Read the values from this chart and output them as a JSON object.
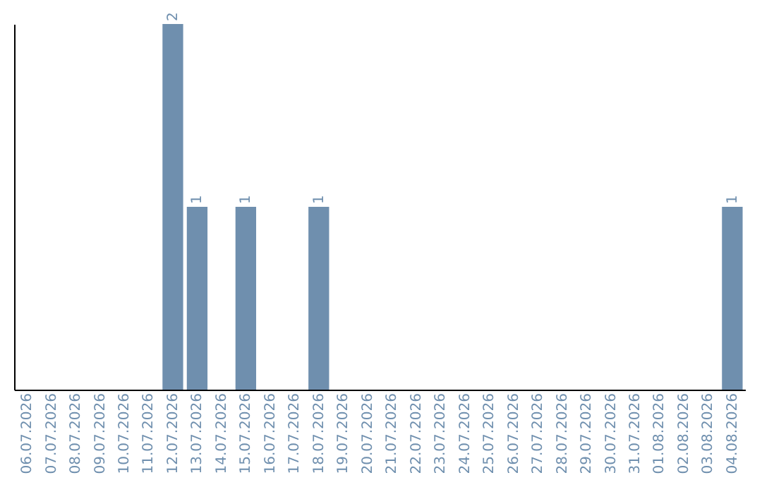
{
  "chart_data": {
    "type": "bar",
    "categories": [
      "06.07.2026",
      "07.07.2026",
      "08.07.2026",
      "09.07.2026",
      "10.07.2026",
      "11.07.2026",
      "12.07.2026",
      "13.07.2026",
      "14.07.2026",
      "15.07.2026",
      "16.07.2026",
      "17.07.2026",
      "18.07.2026",
      "19.07.2026",
      "20.07.2026",
      "21.07.2026",
      "22.07.2026",
      "23.07.2026",
      "24.07.2026",
      "25.07.2026",
      "26.07.2026",
      "27.07.2026",
      "28.07.2026",
      "29.07.2026",
      "30.07.2026",
      "31.07.2026",
      "01.08.2026",
      "02.08.2026",
      "03.08.2026",
      "04.08.2026"
    ],
    "values": [
      0,
      0,
      0,
      0,
      0,
      0,
      2,
      1,
      0,
      1,
      0,
      0,
      1,
      0,
      0,
      0,
      0,
      0,
      0,
      0,
      0,
      0,
      0,
      0,
      0,
      0,
      0,
      0,
      0,
      1
    ],
    "value_labels": [
      null,
      null,
      null,
      null,
      null,
      null,
      "2",
      "1",
      null,
      "1",
      null,
      null,
      "1",
      null,
      null,
      null,
      null,
      null,
      null,
      null,
      null,
      null,
      null,
      null,
      null,
      null,
      null,
      null,
      null,
      "1"
    ],
    "color": "#6f8fae",
    "ylim": [
      0,
      2
    ],
    "tick_labels": "x",
    "grid": false
  }
}
